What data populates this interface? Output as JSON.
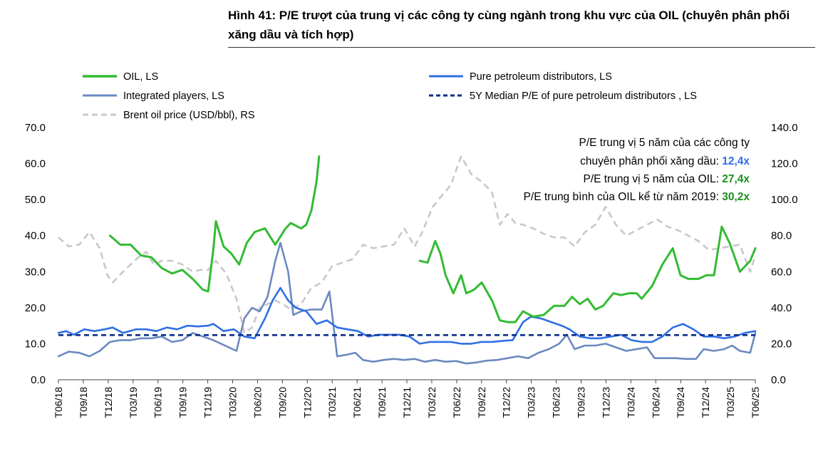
{
  "figure_title": "Hình 41: P/E trượt của trung vị các công ty cùng ngành trong khu vực của OIL (chuyên phân phối xăng dầu và tích hợp)",
  "colors": {
    "oil": "#33bb33",
    "pure": "#2f6fe4",
    "integrated": "#6b89c0",
    "median": "#0a2f8a",
    "brent": "#c8c8c8",
    "anno_pure": "#2f6fe4",
    "anno_oil": "#1e8f1e"
  },
  "annotations": [
    {
      "text": "P/E trung vị 5 năm của các công ty",
      "value": ""
    },
    {
      "text": "chuyên phân phối xăng dầu: ",
      "value": "12,4x",
      "color": "anno_pure"
    },
    {
      "text": "P/E trung vị 5 năm của OIL: ",
      "value": "27,4x",
      "color": "anno_oil"
    },
    {
      "text": "P/E trung bình của OIL kể từ năm 2019: ",
      "value": "30,2x",
      "color": "anno_oil"
    }
  ],
  "chart_data": {
    "type": "line",
    "title": "",
    "xlabel": "",
    "ylabel": "",
    "y2label": "",
    "categories": [
      "T06/18",
      "T09/18",
      "T12/18",
      "T03/19",
      "T06/19",
      "T09/19",
      "T12/19",
      "T03/20",
      "T06/20",
      "T09/20",
      "T12/20",
      "T03/21",
      "T06/21",
      "T09/21",
      "T12/21",
      "T03/22",
      "T06/22",
      "T09/22",
      "T12/22",
      "T03/23",
      "T06/23",
      "T09/23",
      "T12/23",
      "T03/24",
      "T06/24",
      "T09/24",
      "T12/24",
      "T03/25",
      "T06/25"
    ],
    "ylim": [
      0,
      70
    ],
    "yticks": [
      "0.0",
      "10.0",
      "20.0",
      "30.0",
      "40.0",
      "50.0",
      "60.0",
      "70.0"
    ],
    "y2lim": [
      0,
      140
    ],
    "y2ticks": [
      "0.0",
      "20.0",
      "40.0",
      "60.0",
      "80.0",
      "100.0",
      "120.0",
      "140.0"
    ],
    "legend": {
      "position": "top",
      "columns": 2
    },
    "grid": false,
    "series": [
      {
        "name": "OIL, LS",
        "axis": "left",
        "style": "solid",
        "colorKey": "oil",
        "width": 3,
        "points": [
          [
            2.0,
            40
          ],
          [
            2.4,
            37.5
          ],
          [
            2.8,
            37.5
          ],
          [
            3.2,
            34.5
          ],
          [
            3.6,
            34
          ],
          [
            4.0,
            31
          ],
          [
            4.4,
            29.5
          ],
          [
            4.8,
            30.5
          ],
          [
            5.2,
            28
          ],
          [
            5.6,
            25
          ],
          [
            5.8,
            24.5
          ],
          [
            6.0,
            36
          ],
          [
            6.1,
            44
          ],
          [
            6.4,
            37
          ],
          [
            6.7,
            35
          ],
          [
            7.0,
            32
          ],
          [
            7.3,
            38
          ],
          [
            7.6,
            41
          ],
          [
            8.0,
            42
          ],
          [
            8.4,
            37.5
          ],
          [
            8.8,
            42
          ],
          [
            9.0,
            43.5
          ],
          [
            9.4,
            42
          ],
          [
            9.6,
            43
          ],
          [
            9.8,
            47
          ],
          [
            10.0,
            55
          ],
          [
            10.1,
            62
          ]
        ],
        "segments": [
          [
            14.0,
            33
          ],
          [
            14.3,
            32.5
          ],
          [
            14.6,
            38.5
          ],
          [
            14.8,
            35
          ],
          [
            15.0,
            29
          ],
          [
            15.3,
            24
          ],
          [
            15.6,
            29
          ],
          [
            15.8,
            24
          ],
          [
            16.1,
            25
          ],
          [
            16.4,
            27
          ],
          [
            16.8,
            22
          ],
          [
            17.1,
            16.5
          ],
          [
            17.4,
            16
          ],
          [
            17.7,
            16
          ],
          [
            18.0,
            19
          ],
          [
            18.4,
            17.5
          ],
          [
            18.8,
            18
          ],
          [
            19.2,
            20.5
          ],
          [
            19.6,
            20.5
          ],
          [
            19.9,
            23
          ],
          [
            20.2,
            21
          ],
          [
            20.5,
            22.5
          ],
          [
            20.8,
            19.5
          ],
          [
            21.1,
            20.5
          ],
          [
            21.5,
            24
          ],
          [
            21.8,
            23.5
          ],
          [
            22.1,
            24
          ],
          [
            22.4,
            24
          ],
          [
            22.6,
            22.5
          ],
          [
            23.0,
            26
          ],
          [
            23.4,
            32
          ],
          [
            23.8,
            36.5
          ],
          [
            24.1,
            29
          ],
          [
            24.4,
            28
          ],
          [
            24.8,
            28
          ],
          [
            25.1,
            29
          ],
          [
            25.4,
            29
          ],
          [
            25.7,
            42.5
          ],
          [
            26.0,
            38
          ],
          [
            26.4,
            30
          ],
          [
            26.8,
            33
          ],
          [
            27.0,
            36.5
          ]
        ]
      },
      {
        "name": "Pure petroleum distributors, LS",
        "axis": "left",
        "style": "solid",
        "colorKey": "pure",
        "width": 2.6,
        "points": [
          [
            0.0,
            13
          ],
          [
            0.3,
            13.5
          ],
          [
            0.6,
            12.5
          ],
          [
            1.0,
            14
          ],
          [
            1.4,
            13.5
          ],
          [
            1.8,
            14
          ],
          [
            2.1,
            14.5
          ],
          [
            2.5,
            13
          ],
          [
            3.0,
            14
          ],
          [
            3.4,
            14
          ],
          [
            3.8,
            13.5
          ],
          [
            4.2,
            14.5
          ],
          [
            4.6,
            14
          ],
          [
            5.0,
            15
          ],
          [
            5.4,
            14.8
          ],
          [
            5.8,
            15
          ],
          [
            6.0,
            15.5
          ],
          [
            6.4,
            13.5
          ],
          [
            6.8,
            14
          ],
          [
            7.2,
            12
          ],
          [
            7.6,
            11.5
          ],
          [
            8.0,
            17
          ],
          [
            8.3,
            22
          ],
          [
            8.6,
            25.5
          ],
          [
            8.9,
            22
          ],
          [
            9.2,
            20
          ],
          [
            9.6,
            19
          ],
          [
            10.0,
            15.5
          ],
          [
            10.4,
            16.5
          ],
          [
            10.8,
            14.5
          ],
          [
            11.2,
            14
          ],
          [
            11.6,
            13.5
          ],
          [
            12.0,
            12
          ],
          [
            12.4,
            12.5
          ],
          [
            12.8,
            12.5
          ],
          [
            13.2,
            12.5
          ],
          [
            13.6,
            12
          ],
          [
            14.0,
            10
          ],
          [
            14.4,
            10.5
          ],
          [
            14.8,
            10.5
          ],
          [
            15.2,
            10.5
          ],
          [
            15.6,
            10
          ],
          [
            16.0,
            10
          ],
          [
            16.4,
            10.5
          ],
          [
            16.8,
            10.5
          ],
          [
            17.2,
            10.8
          ],
          [
            17.6,
            11
          ],
          [
            18.0,
            16
          ],
          [
            18.3,
            17.5
          ],
          [
            18.7,
            17
          ],
          [
            19.1,
            16
          ],
          [
            19.5,
            15
          ],
          [
            19.8,
            14
          ],
          [
            20.2,
            12
          ],
          [
            20.6,
            11.5
          ],
          [
            21.0,
            11.5
          ],
          [
            21.4,
            12
          ],
          [
            21.8,
            12.5
          ],
          [
            22.2,
            11
          ],
          [
            22.6,
            10.5
          ],
          [
            23.0,
            10.5
          ],
          [
            23.4,
            12
          ],
          [
            23.8,
            14.5
          ],
          [
            24.2,
            15.5
          ],
          [
            24.6,
            14
          ],
          [
            25.0,
            12
          ],
          [
            25.4,
            12
          ],
          [
            25.8,
            11.5
          ],
          [
            26.2,
            12
          ],
          [
            26.6,
            13
          ],
          [
            27.0,
            13.5
          ]
        ]
      },
      {
        "name": "Integrated players, LS",
        "axis": "left",
        "style": "solid",
        "colorKey": "integrated",
        "width": 2.6,
        "points": [
          [
            0.0,
            6.5
          ],
          [
            0.4,
            7.8
          ],
          [
            0.8,
            7.5
          ],
          [
            1.2,
            6.5
          ],
          [
            1.6,
            8
          ],
          [
            2.0,
            10.5
          ],
          [
            2.4,
            11
          ],
          [
            2.8,
            11
          ],
          [
            3.2,
            11.5
          ],
          [
            3.6,
            11.5
          ],
          [
            4.0,
            12
          ],
          [
            4.4,
            10.5
          ],
          [
            4.8,
            11
          ],
          [
            5.2,
            13
          ],
          [
            5.6,
            12
          ],
          [
            6.0,
            11
          ],
          [
            6.3,
            10
          ],
          [
            6.6,
            9
          ],
          [
            6.9,
            8
          ],
          [
            7.2,
            17
          ],
          [
            7.5,
            20
          ],
          [
            7.8,
            19
          ],
          [
            8.1,
            23
          ],
          [
            8.4,
            33
          ],
          [
            8.6,
            38
          ],
          [
            8.9,
            30
          ],
          [
            9.1,
            18
          ],
          [
            9.4,
            19
          ],
          [
            9.8,
            19.5
          ],
          [
            10.2,
            19.5
          ],
          [
            10.5,
            24.5
          ],
          [
            10.8,
            6.5
          ],
          [
            11.2,
            7
          ],
          [
            11.5,
            7.5
          ],
          [
            11.8,
            5.5
          ],
          [
            12.2,
            5
          ],
          [
            12.6,
            5.5
          ],
          [
            13.0,
            5.8
          ],
          [
            13.4,
            5.5
          ],
          [
            13.8,
            5.8
          ],
          [
            14.2,
            5
          ],
          [
            14.6,
            5.5
          ],
          [
            15.0,
            5
          ],
          [
            15.4,
            5.2
          ],
          [
            15.8,
            4.5
          ],
          [
            16.2,
            4.8
          ],
          [
            16.6,
            5.3
          ],
          [
            17.0,
            5.5
          ],
          [
            17.4,
            6
          ],
          [
            17.8,
            6.5
          ],
          [
            18.2,
            6
          ],
          [
            18.6,
            7.5
          ],
          [
            19.0,
            8.5
          ],
          [
            19.4,
            10
          ],
          [
            19.7,
            12.5
          ],
          [
            20.0,
            8.5
          ],
          [
            20.4,
            9.5
          ],
          [
            20.8,
            9.5
          ],
          [
            21.2,
            10
          ],
          [
            21.6,
            9
          ],
          [
            22.0,
            8
          ],
          [
            22.4,
            8.5
          ],
          [
            22.8,
            9
          ],
          [
            23.1,
            6
          ],
          [
            23.5,
            6
          ],
          [
            23.9,
            6
          ],
          [
            24.3,
            5.8
          ],
          [
            24.7,
            5.8
          ],
          [
            25.0,
            8.5
          ],
          [
            25.4,
            8
          ],
          [
            25.8,
            8.5
          ],
          [
            26.1,
            9.5
          ],
          [
            26.4,
            8
          ],
          [
            26.8,
            7.5
          ],
          [
            27.0,
            13
          ]
        ]
      },
      {
        "name": "5Y Median P/E of pure petroleum distributors , LS",
        "axis": "left",
        "style": "dashed",
        "colorKey": "median",
        "width": 2.6,
        "points": [
          [
            0.0,
            12.4
          ],
          [
            27.0,
            12.4
          ]
        ]
      },
      {
        "name": "Brent oil price (USD/bbl), RS",
        "axis": "right",
        "style": "dashed",
        "colorKey": "brent",
        "width": 2.6,
        "points": [
          [
            0.0,
            79
          ],
          [
            0.4,
            74
          ],
          [
            0.8,
            75
          ],
          [
            1.2,
            82
          ],
          [
            1.6,
            73
          ],
          [
            1.9,
            58
          ],
          [
            2.1,
            54
          ],
          [
            2.5,
            60
          ],
          [
            2.8,
            64
          ],
          [
            3.1,
            68
          ],
          [
            3.4,
            71
          ],
          [
            3.7,
            64
          ],
          [
            4.0,
            66
          ],
          [
            4.4,
            66
          ],
          [
            4.8,
            64
          ],
          [
            5.2,
            60
          ],
          [
            5.5,
            61
          ],
          [
            5.8,
            61
          ],
          [
            6.1,
            66
          ],
          [
            6.5,
            59
          ],
          [
            6.9,
            45
          ],
          [
            7.2,
            26
          ],
          [
            7.5,
            29
          ],
          [
            7.8,
            40
          ],
          [
            8.1,
            42
          ],
          [
            8.4,
            44
          ],
          [
            8.7,
            42
          ],
          [
            9.0,
            39
          ],
          [
            9.4,
            42
          ],
          [
            9.8,
            51
          ],
          [
            10.2,
            54
          ],
          [
            10.6,
            63
          ],
          [
            11.0,
            65
          ],
          [
            11.4,
            67
          ],
          [
            11.8,
            75
          ],
          [
            12.2,
            73
          ],
          [
            12.6,
            74
          ],
          [
            13.0,
            75
          ],
          [
            13.4,
            84
          ],
          [
            13.8,
            74
          ],
          [
            14.1,
            82
          ],
          [
            14.5,
            96
          ],
          [
            14.9,
            103
          ],
          [
            15.2,
            108
          ],
          [
            15.6,
            124
          ],
          [
            16.0,
            114
          ],
          [
            16.4,
            110
          ],
          [
            16.8,
            104
          ],
          [
            17.1,
            86
          ],
          [
            17.4,
            92
          ],
          [
            17.7,
            87
          ],
          [
            18.0,
            86
          ],
          [
            18.4,
            84
          ],
          [
            18.8,
            81
          ],
          [
            19.2,
            79
          ],
          [
            19.6,
            79
          ],
          [
            20.0,
            74
          ],
          [
            20.4,
            82
          ],
          [
            20.8,
            86
          ],
          [
            21.2,
            96
          ],
          [
            21.6,
            86
          ],
          [
            22.0,
            80
          ],
          [
            22.4,
            83
          ],
          [
            22.8,
            86
          ],
          [
            23.2,
            89
          ],
          [
            23.6,
            85
          ],
          [
            24.0,
            83
          ],
          [
            24.4,
            80
          ],
          [
            24.8,
            77
          ],
          [
            25.2,
            72
          ],
          [
            25.6,
            73
          ],
          [
            26.0,
            74
          ],
          [
            26.4,
            75
          ],
          [
            26.8,
            60
          ],
          [
            27.0,
            69
          ]
        ]
      }
    ]
  }
}
